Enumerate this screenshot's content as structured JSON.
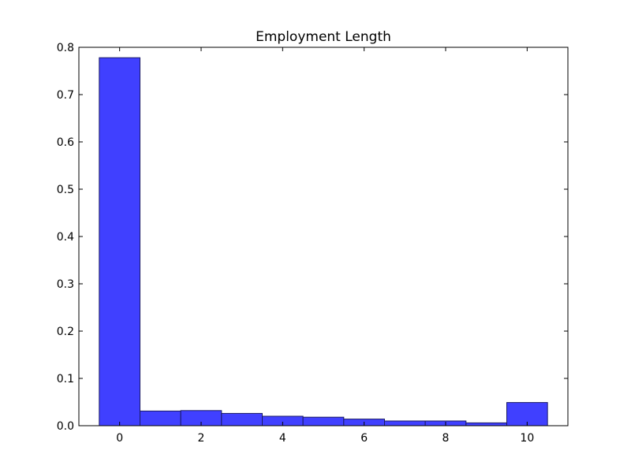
{
  "chart_data": {
    "type": "bar",
    "title": "Employment Length",
    "xlabel": "",
    "ylabel": "",
    "x": [
      0,
      1,
      2,
      3,
      4,
      5,
      6,
      7,
      8,
      9,
      10
    ],
    "values": [
      0.778,
      0.031,
      0.032,
      0.026,
      0.02,
      0.018,
      0.014,
      0.01,
      0.01,
      0.006,
      0.049
    ],
    "bar_width": 1,
    "xlim": [
      -1,
      11
    ],
    "ylim": [
      0,
      0.8
    ],
    "xticks": [
      0,
      2,
      4,
      6,
      8,
      10
    ],
    "xtick_labels": [
      "0",
      "2",
      "4",
      "6",
      "8",
      "10"
    ],
    "yticks": [
      0.0,
      0.1,
      0.2,
      0.3,
      0.4,
      0.5,
      0.6,
      0.7,
      0.8
    ],
    "ytick_labels": [
      "0.0",
      "0.1",
      "0.2",
      "0.3",
      "0.4",
      "0.5",
      "0.6",
      "0.7",
      "0.8"
    ],
    "bar_color": "#4040ff",
    "grid": false,
    "legend": "none"
  }
}
